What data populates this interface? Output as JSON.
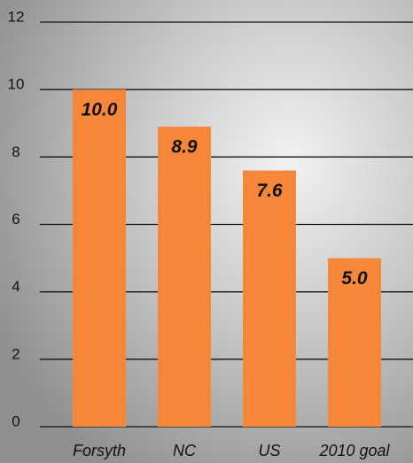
{
  "chart_data": {
    "type": "bar",
    "categories": [
      "Forsyth",
      "NC",
      "US",
      "2010 goal"
    ],
    "values": [
      10.0,
      8.9,
      7.6,
      5.0
    ],
    "value_labels": [
      "10.0",
      "8.9",
      "7.6",
      "5.0"
    ],
    "color": "#f7883a",
    "ylim": [
      0,
      12
    ],
    "yticks": [
      0,
      2,
      4,
      6,
      8,
      10,
      12
    ],
    "grid": true
  }
}
